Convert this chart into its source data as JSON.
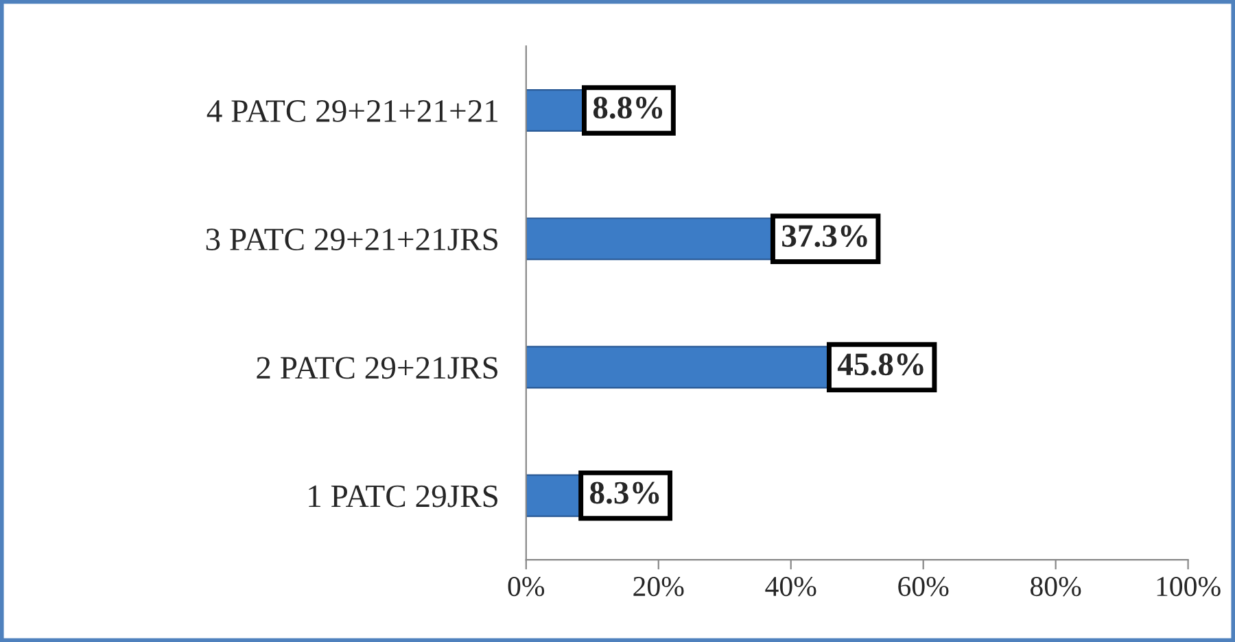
{
  "chart_data": {
    "type": "bar",
    "orientation": "horizontal",
    "categories": [
      "4 PATC 29+21+21+21",
      "3 PATC 29+21+21JRS",
      "2 PATC 29+21JRS",
      "1 PATC 29JRS"
    ],
    "values": [
      8.8,
      37.3,
      45.8,
      8.3
    ],
    "value_labels": [
      "8.8%",
      "37.3%",
      "45.8%",
      "8.3%"
    ],
    "color": "#3c7cc6",
    "xlim": [
      0,
      100
    ],
    "xticks": [
      {
        "value": 0,
        "label": "0%"
      },
      {
        "value": 20,
        "label": "20%"
      },
      {
        "value": 40,
        "label": "40%"
      },
      {
        "value": 60,
        "label": "60%"
      },
      {
        "value": 80,
        "label": "80%"
      },
      {
        "value": 100,
        "label": "100%"
      }
    ],
    "grid": false,
    "legend": false
  }
}
